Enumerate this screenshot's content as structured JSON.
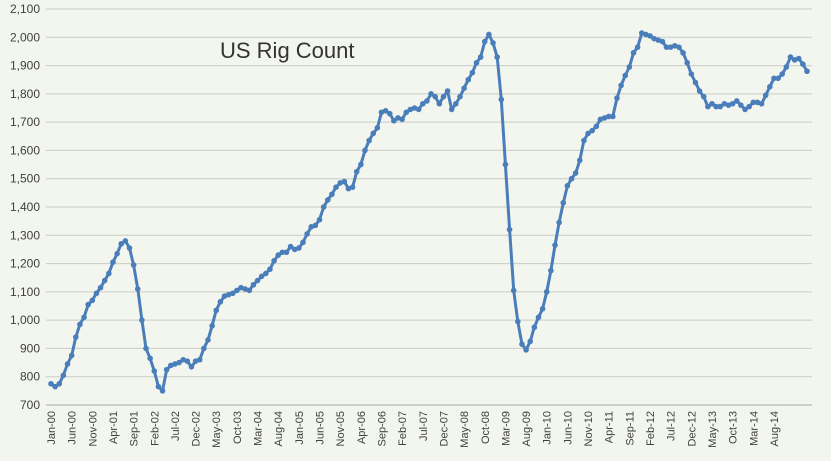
{
  "chart_data": {
    "type": "line",
    "title": "US Rig Count",
    "xlabel": "",
    "ylabel": "",
    "ylim": [
      700,
      2100
    ],
    "y_ticks": [
      "700",
      "800",
      "900",
      "1,000",
      "1,100",
      "1,200",
      "1,300",
      "1,400",
      "1,500",
      "1,600",
      "1,700",
      "1,800",
      "1,900",
      "2,000",
      "2,100"
    ],
    "x_tick_labels": [
      "Jan-00",
      "Jun-00",
      "Nov-00",
      "Apr-01",
      "Sep-01",
      "Feb-02",
      "Jul-02",
      "Dec-02",
      "May-03",
      "Oct-03",
      "Mar-04",
      "Aug-04",
      "Jan-05",
      "Jun-05",
      "Nov-05",
      "Apr-06",
      "Sep-06",
      "Feb-07",
      "Jul-07",
      "Dec-07",
      "May-08",
      "Oct-08",
      "Mar-09",
      "Aug-09",
      "Jan-10",
      "Jun-10",
      "Nov-10",
      "Apr-11",
      "Sep-11",
      "Feb-12",
      "Jul-12",
      "Dec-12",
      "May-13",
      "Oct-13",
      "Mar-14",
      "Aug-14"
    ],
    "x_start": "Jan-00",
    "grid": "horizontal",
    "colors": {
      "line": "#4a7ebb",
      "marker": "#4a7ebb",
      "grid": "#c8ccc4",
      "background": "#f3f6ee"
    },
    "series": [
      {
        "values": [
          775,
          765,
          775,
          805,
          845,
          875,
          940,
          985,
          1010,
          1055,
          1070,
          1095,
          1115,
          1140,
          1165,
          1205,
          1235,
          1270,
          1280,
          1255,
          1195,
          1110,
          1000,
          900,
          865,
          820,
          765,
          750,
          825,
          840,
          845,
          850,
          860,
          855,
          835,
          855,
          860,
          900,
          930,
          980,
          1035,
          1065,
          1085,
          1090,
          1095,
          1105,
          1115,
          1110,
          1105,
          1125,
          1140,
          1155,
          1165,
          1180,
          1210,
          1230,
          1240,
          1240,
          1260,
          1250,
          1255,
          1275,
          1305,
          1330,
          1335,
          1355,
          1400,
          1425,
          1445,
          1470,
          1485,
          1490,
          1465,
          1470,
          1525,
          1550,
          1600,
          1635,
          1660,
          1680,
          1735,
          1740,
          1730,
          1705,
          1715,
          1710,
          1735,
          1745,
          1750,
          1745,
          1765,
          1775,
          1800,
          1790,
          1765,
          1790,
          1810,
          1745,
          1765,
          1790,
          1820,
          1850,
          1875,
          1910,
          1930,
          1985,
          2010,
          1980,
          1930,
          1780,
          1550,
          1320,
          1105,
          995,
          915,
          895,
          925,
          975,
          1010,
          1040,
          1100,
          1175,
          1265,
          1345,
          1415,
          1475,
          1500,
          1520,
          1565,
          1635,
          1660,
          1670,
          1685,
          1710,
          1715,
          1720,
          1720,
          1785,
          1830,
          1865,
          1895,
          1945,
          1965,
          2015,
          2010,
          2005,
          1995,
          1990,
          1985,
          1965,
          1965,
          1970,
          1965,
          1945,
          1910,
          1870,
          1840,
          1810,
          1790,
          1755,
          1765,
          1755,
          1755,
          1765,
          1760,
          1765,
          1775,
          1760,
          1745,
          1755,
          1770,
          1770,
          1765,
          1795,
          1825,
          1855,
          1855,
          1870,
          1895,
          1930,
          1920,
          1925,
          1905,
          1880
        ]
      }
    ]
  }
}
